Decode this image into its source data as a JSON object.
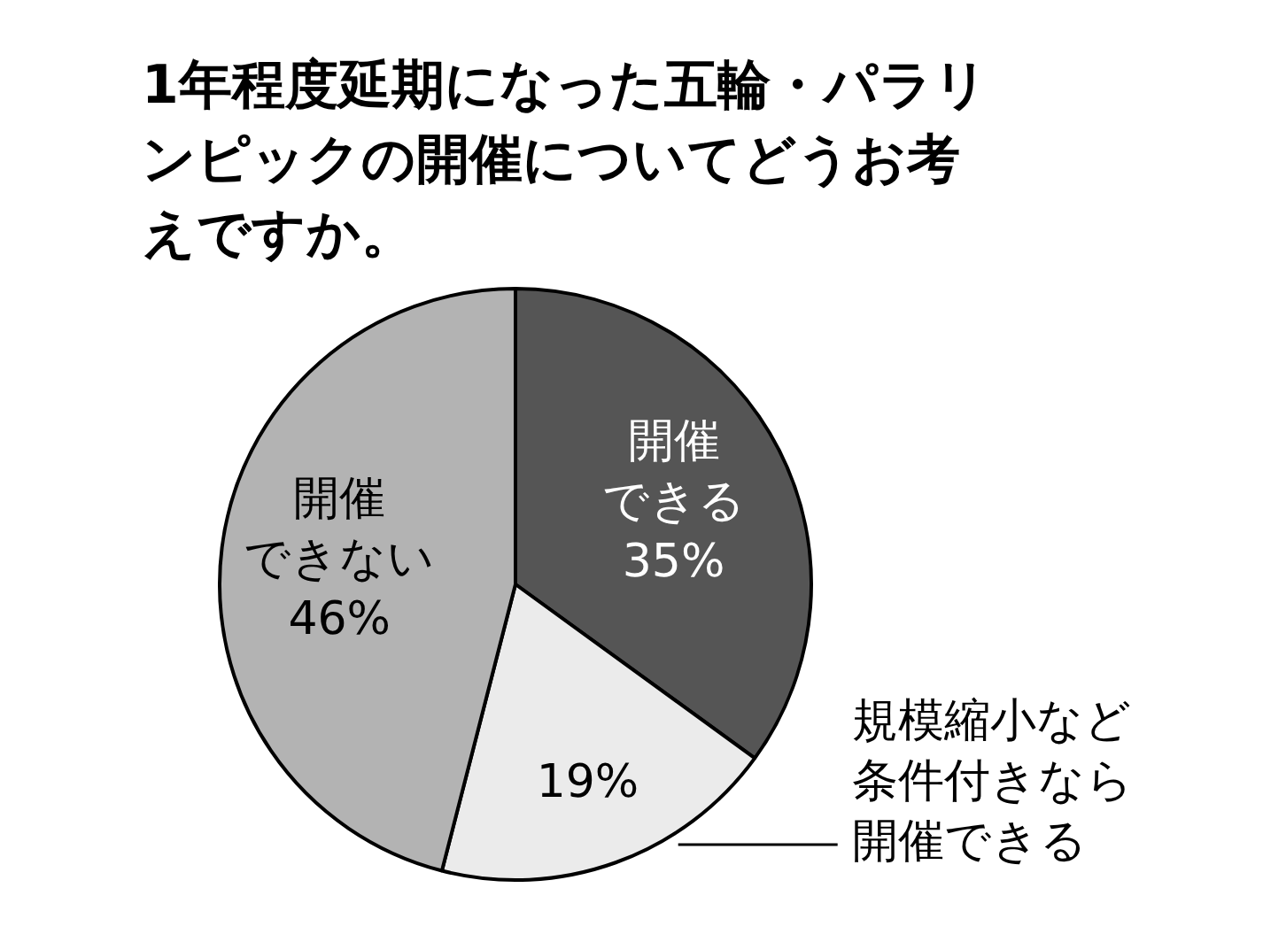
{
  "chart_data": {
    "type": "pie",
    "title": "1年程度延期になった五輪・パラリンピックの開催についてどうお考えですか。",
    "categories": [
      "開催できる",
      "規模縮小など条件付きなら開催できる",
      "開催できない"
    ],
    "values": [
      35,
      19,
      46
    ],
    "colors": [
      "#555555",
      "#ebebeb",
      "#b3b3b3"
    ],
    "value_labels": [
      "35%",
      "19%",
      "46%"
    ],
    "legend": false
  }
}
